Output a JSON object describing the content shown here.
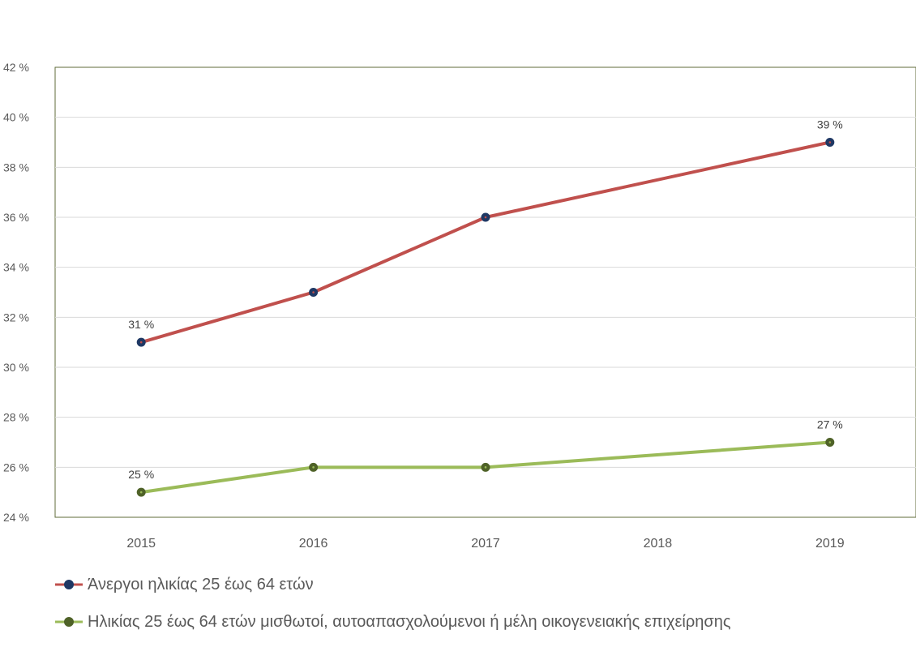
{
  "chart_data": {
    "type": "line",
    "categories": [
      "2015",
      "2016",
      "2017",
      "2018",
      "2019"
    ],
    "ylim": [
      24,
      42
    ],
    "yticks": [
      24,
      26,
      28,
      30,
      32,
      34,
      36,
      38,
      40,
      42
    ],
    "ytick_labels": [
      "24 %",
      "26 %",
      "28 %",
      "30 %",
      "32 %",
      "34 %",
      "36 %",
      "38 %",
      "40 %",
      "42 %"
    ],
    "grid": true,
    "legend_position": "bottom-left",
    "series": [
      {
        "name": "Άνεργοι ηλικίας 25 έως 64 ετών",
        "color": "#c0504d",
        "marker_color": "#1f3864",
        "values": [
          31,
          33,
          36,
          null,
          39
        ],
        "data_labels": [
          "31 %",
          "",
          "",
          "",
          "39 %"
        ]
      },
      {
        "name": "Ηλικίας 25 έως 64 ετών μισθωτοί, αυτοαπασχολούμενοι ή μέλη οικογενειακής επιχείρησης",
        "color": "#9bbb59",
        "marker_color": "#4f6228",
        "values": [
          25,
          26,
          26,
          null,
          27
        ],
        "data_labels": [
          "25 %",
          "",
          "",
          "",
          "27 %"
        ]
      }
    ]
  }
}
